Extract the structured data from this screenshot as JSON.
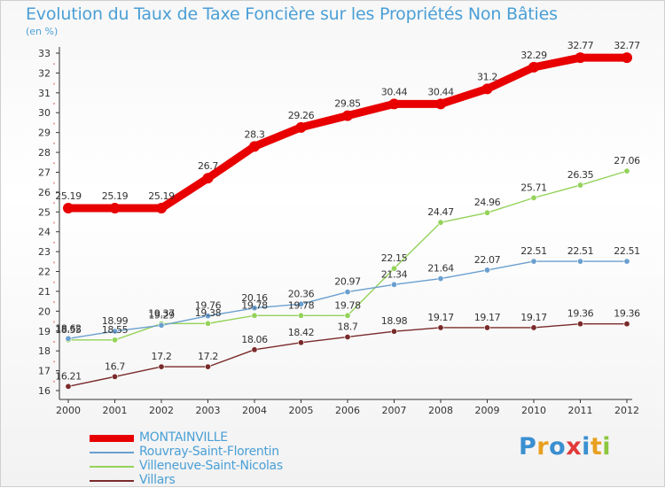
{
  "title": "Evolution du Taux de Taxe Foncière sur les Propriétés Non Bâties",
  "unit": "(en %)",
  "logo": {
    "text": "Proxiti",
    "colors": [
      "#3a8fd0",
      "#e8a020",
      "#3a8fd0",
      "#e23a3a",
      "#3a8fd0",
      "#e8a020",
      "#8cc63f"
    ]
  },
  "chart_data": {
    "type": "line",
    "title": "Evolution du Taux de Taxe Foncière sur les Propriétés Non Bâties",
    "ylabel": "(en %)",
    "xlabel": "",
    "x": [
      "2000",
      "2001",
      "2002",
      "2003",
      "2004",
      "2005",
      "2006",
      "2007",
      "2008",
      "2009",
      "2010",
      "2011",
      "2012"
    ],
    "ylim": [
      16,
      33
    ],
    "yticks": [
      16,
      17,
      18,
      19,
      20,
      21,
      22,
      23,
      24,
      25,
      26,
      27,
      28,
      29,
      30,
      31,
      32,
      33
    ],
    "grid": false,
    "legend_position": "bottom-left",
    "series": [
      {
        "name": "MONTAINVILLE",
        "color": "#e80000",
        "values": [
          25.19,
          25.19,
          25.19,
          26.7,
          28.3,
          29.26,
          29.85,
          30.44,
          30.44,
          31.2,
          32.29,
          32.77,
          32.77
        ],
        "labels": [
          "25.19",
          "25.19",
          "25.19",
          "26.7",
          "28.3",
          "29.26",
          "29.85",
          "30.44",
          "30.44",
          "31.2",
          "32.29",
          "32.77",
          "32.77"
        ]
      },
      {
        "name": "Rouvray-Saint-Florentin",
        "color": "#6a9fcf",
        "values": [
          18.62,
          18.99,
          19.29,
          19.76,
          20.16,
          20.36,
          20.97,
          21.34,
          21.64,
          22.07,
          22.51,
          22.51,
          22.51
        ],
        "labels": [
          "18.62",
          "18.99",
          "19.29",
          "19.76",
          "20.16",
          "20.36",
          "20.97",
          "21.34",
          "21.64",
          "22.07",
          "22.51",
          "22.51",
          "22.51"
        ]
      },
      {
        "name": "Villeneuve-Saint-Nicolas",
        "color": "#94d25a",
        "values": [
          18.55,
          18.55,
          19.37,
          19.38,
          19.78,
          19.78,
          19.78,
          22.15,
          24.47,
          24.96,
          25.71,
          26.35,
          27.06
        ],
        "labels": [
          "18.55",
          "18.55",
          "19.37",
          "19.38",
          "19.78",
          "19.78",
          "19.78",
          "22.15",
          "24.47",
          "24.96",
          "25.71",
          "26.35",
          "27.06"
        ]
      },
      {
        "name": "Villars",
        "color": "#7a2a2a",
        "values": [
          16.21,
          16.7,
          17.2,
          17.2,
          18.06,
          18.42,
          18.7,
          18.98,
          19.17,
          19.17,
          19.17,
          19.36,
          19.36
        ],
        "labels": [
          "16.21",
          "16.7",
          "17.2",
          "17.2",
          "18.06",
          "18.42",
          "18.7",
          "18.98",
          "19.17",
          "19.17",
          "19.17",
          "19.36",
          "19.36"
        ]
      }
    ]
  }
}
